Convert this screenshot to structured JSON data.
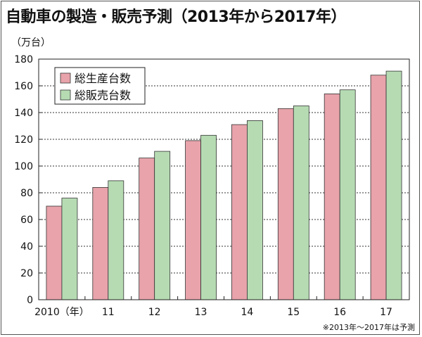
{
  "title": "自動車の製造・販売予測（2013年から2017年）",
  "unit_label": "（万台）",
  "note": "※2013年～2017年は予測",
  "colors": {
    "production": "#e8a3ab",
    "sales": "#b6dbb3",
    "bar_stroke": "#333333",
    "grid": "#333333"
  },
  "chart_data": {
    "type": "bar",
    "title": "自動車の製造・販売予測（2013年から2017年）",
    "ylabel": "（万台）",
    "xlabel": "",
    "ylim": [
      0,
      180
    ],
    "yticks": [
      0,
      20,
      40,
      60,
      80,
      100,
      120,
      140,
      160,
      180
    ],
    "grid": true,
    "legend_position": "top-left",
    "categories": [
      "2010（年）",
      "11",
      "12",
      "13",
      "14",
      "15",
      "16",
      "17"
    ],
    "series": [
      {
        "name": "総生産台数",
        "values": [
          70,
          84,
          106,
          119,
          131,
          143,
          154,
          168
        ]
      },
      {
        "name": "総販売台数",
        "values": [
          76,
          89,
          111,
          123,
          134,
          145,
          157,
          171
        ]
      }
    ]
  }
}
